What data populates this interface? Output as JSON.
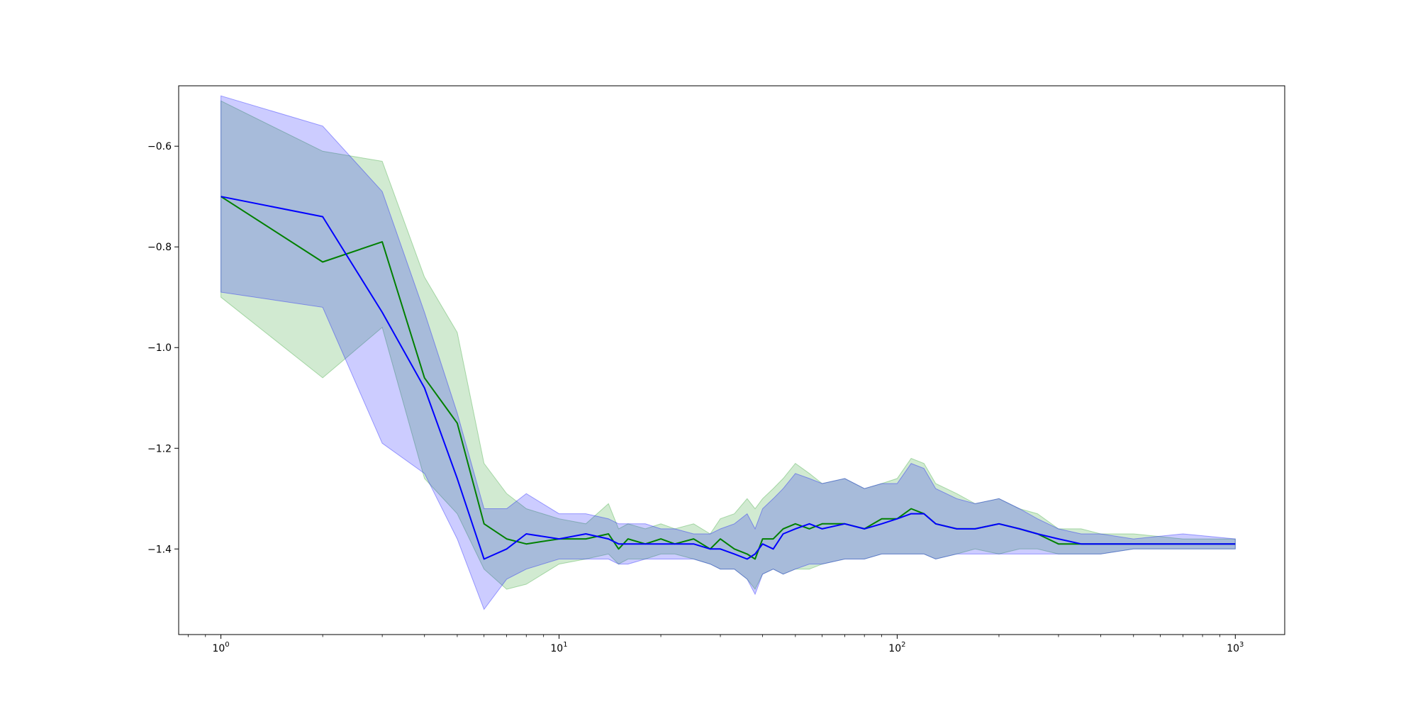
{
  "chart_data": {
    "type": "line",
    "title": "",
    "xlabel": "",
    "ylabel": "",
    "xscale": "log",
    "xlim": [
      0.75,
      1400
    ],
    "ylim": [
      -1.57,
      -0.48
    ],
    "grid": false,
    "legend": "none",
    "x_ticks": [
      {
        "value": 1,
        "label": "10",
        "exp": "0"
      },
      {
        "value": 10,
        "label": "10",
        "exp": "1"
      },
      {
        "value": 100,
        "label": "10",
        "exp": "2"
      },
      {
        "value": 1000,
        "label": "10",
        "exp": "3"
      }
    ],
    "y_ticks": [
      {
        "value": -0.6,
        "label": "−0.6"
      },
      {
        "value": -0.8,
        "label": "−0.8"
      },
      {
        "value": -1.0,
        "label": "−1.0"
      },
      {
        "value": -1.2,
        "label": "−1.2"
      },
      {
        "value": -1.4,
        "label": "−1.4"
      }
    ],
    "series": [
      {
        "color": "#008000",
        "band_color": "#2ca02c",
        "band_opacity": 0.22,
        "x": [
          1,
          2,
          3,
          4,
          5,
          6,
          7,
          8,
          10,
          12,
          14,
          15,
          16,
          18,
          20,
          22,
          25,
          28,
          30,
          33,
          36,
          38,
          40,
          43,
          46,
          50,
          55,
          60,
          70,
          80,
          90,
          100,
          110,
          120,
          130,
          150,
          170,
          200,
          230,
          260,
          300,
          350,
          400,
          500,
          700,
          1000
        ],
        "y": [
          -0.7,
          -0.83,
          -0.79,
          -1.06,
          -1.15,
          -1.35,
          -1.38,
          -1.39,
          -1.38,
          -1.38,
          -1.37,
          -1.4,
          -1.38,
          -1.39,
          -1.38,
          -1.39,
          -1.38,
          -1.4,
          -1.38,
          -1.4,
          -1.41,
          -1.42,
          -1.38,
          -1.38,
          -1.36,
          -1.35,
          -1.36,
          -1.35,
          -1.35,
          -1.36,
          -1.34,
          -1.34,
          -1.32,
          -1.33,
          -1.35,
          -1.36,
          -1.36,
          -1.35,
          -1.36,
          -1.37,
          -1.39,
          -1.39,
          -1.39,
          -1.39,
          -1.39,
          -1.39
        ],
        "lower": [
          -0.9,
          -1.06,
          -0.96,
          -1.26,
          -1.33,
          -1.44,
          -1.48,
          -1.47,
          -1.43,
          -1.42,
          -1.41,
          -1.43,
          -1.42,
          -1.42,
          -1.41,
          -1.41,
          -1.42,
          -1.43,
          -1.44,
          -1.44,
          -1.46,
          -1.48,
          -1.45,
          -1.44,
          -1.45,
          -1.44,
          -1.44,
          -1.43,
          -1.42,
          -1.42,
          -1.41,
          -1.41,
          -1.41,
          -1.41,
          -1.42,
          -1.41,
          -1.4,
          -1.41,
          -1.4,
          -1.4,
          -1.41,
          -1.41,
          -1.41,
          -1.4,
          -1.4,
          -1.4
        ],
        "upper": [
          -0.51,
          -0.61,
          -0.63,
          -0.86,
          -0.97,
          -1.23,
          -1.29,
          -1.32,
          -1.34,
          -1.35,
          -1.31,
          -1.36,
          -1.35,
          -1.36,
          -1.35,
          -1.36,
          -1.35,
          -1.37,
          -1.34,
          -1.33,
          -1.3,
          -1.32,
          -1.3,
          -1.28,
          -1.26,
          -1.23,
          -1.25,
          -1.27,
          -1.26,
          -1.28,
          -1.27,
          -1.26,
          -1.22,
          -1.23,
          -1.27,
          -1.29,
          -1.31,
          -1.3,
          -1.32,
          -1.33,
          -1.36,
          -1.36,
          -1.37,
          -1.37,
          -1.38,
          -1.38
        ]
      },
      {
        "color": "#0000ff",
        "band_color": "#0000ff",
        "band_opacity": 0.2,
        "x": [
          1,
          2,
          3,
          4,
          5,
          6,
          7,
          8,
          10,
          12,
          14,
          15,
          16,
          18,
          20,
          22,
          25,
          28,
          30,
          33,
          36,
          38,
          40,
          43,
          46,
          50,
          55,
          60,
          70,
          80,
          90,
          100,
          110,
          120,
          130,
          150,
          170,
          200,
          230,
          260,
          300,
          350,
          400,
          500,
          700,
          1000
        ],
        "y": [
          -0.7,
          -0.74,
          -0.93,
          -1.08,
          -1.26,
          -1.42,
          -1.4,
          -1.37,
          -1.38,
          -1.37,
          -1.38,
          -1.39,
          -1.39,
          -1.39,
          -1.39,
          -1.39,
          -1.39,
          -1.4,
          -1.4,
          -1.41,
          -1.42,
          -1.41,
          -1.39,
          -1.4,
          -1.37,
          -1.36,
          -1.35,
          -1.36,
          -1.35,
          -1.36,
          -1.35,
          -1.34,
          -1.33,
          -1.33,
          -1.35,
          -1.36,
          -1.36,
          -1.35,
          -1.36,
          -1.37,
          -1.38,
          -1.39,
          -1.39,
          -1.39,
          -1.39,
          -1.39
        ],
        "lower": [
          -0.89,
          -0.92,
          -1.19,
          -1.25,
          -1.38,
          -1.52,
          -1.46,
          -1.44,
          -1.42,
          -1.42,
          -1.42,
          -1.43,
          -1.43,
          -1.42,
          -1.42,
          -1.42,
          -1.42,
          -1.43,
          -1.44,
          -1.44,
          -1.46,
          -1.49,
          -1.45,
          -1.44,
          -1.45,
          -1.44,
          -1.43,
          -1.43,
          -1.42,
          -1.42,
          -1.41,
          -1.41,
          -1.41,
          -1.41,
          -1.42,
          -1.41,
          -1.41,
          -1.41,
          -1.41,
          -1.41,
          -1.41,
          -1.41,
          -1.41,
          -1.4,
          -1.4,
          -1.4
        ],
        "upper": [
          -0.5,
          -0.56,
          -0.69,
          -0.93,
          -1.13,
          -1.32,
          -1.32,
          -1.29,
          -1.33,
          -1.33,
          -1.34,
          -1.35,
          -1.35,
          -1.35,
          -1.36,
          -1.36,
          -1.37,
          -1.37,
          -1.36,
          -1.35,
          -1.33,
          -1.36,
          -1.32,
          -1.3,
          -1.28,
          -1.25,
          -1.26,
          -1.27,
          -1.26,
          -1.28,
          -1.27,
          -1.27,
          -1.23,
          -1.24,
          -1.28,
          -1.3,
          -1.31,
          -1.3,
          -1.32,
          -1.34,
          -1.36,
          -1.37,
          -1.37,
          -1.38,
          -1.37,
          -1.38
        ]
      }
    ]
  }
}
